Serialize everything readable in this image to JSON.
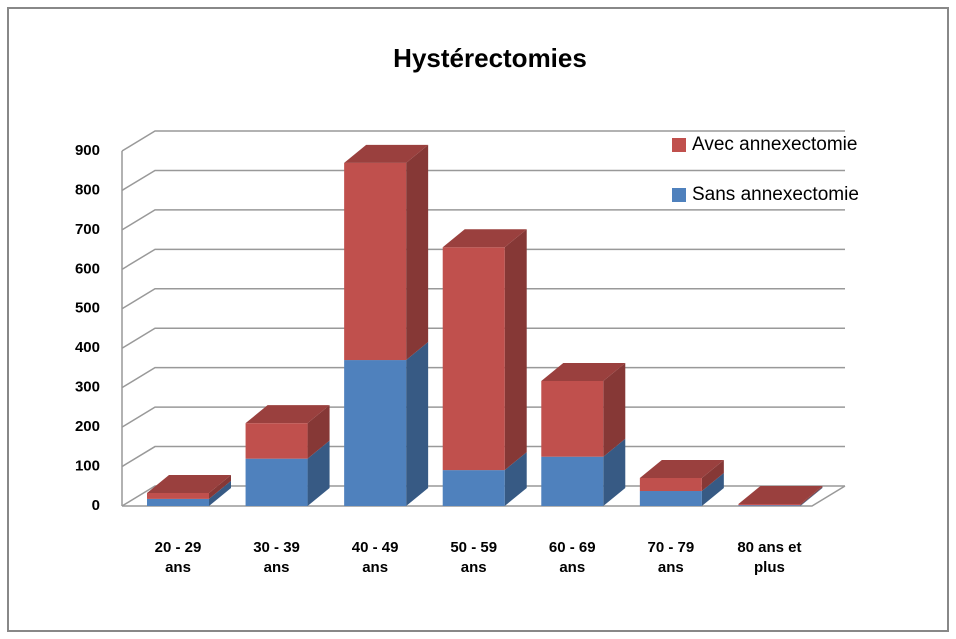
{
  "chart_data": {
    "type": "bar3d_stacked",
    "title": "Hystérectomies",
    "categories": [
      "20 - 29 ans",
      "30 - 39 ans",
      "40 - 49 ans",
      "50 - 59 ans",
      "60 - 69 ans",
      "70 - 79 ans",
      "80 ans et plus"
    ],
    "series": [
      {
        "name": "Sans annexectomie",
        "color": "#4f81bd",
        "values": [
          18,
          120,
          370,
          91,
          125,
          38,
          2
        ]
      },
      {
        "name": "Avec annexectomie",
        "color": "#c0504d",
        "values": [
          15,
          90,
          500,
          565,
          192,
          33,
          3
        ]
      }
    ],
    "ylim": [
      0,
      900
    ],
    "yticks": [
      0,
      100,
      200,
      300,
      400,
      500,
      600,
      700,
      800,
      900
    ],
    "grid": true,
    "legend": "right"
  }
}
